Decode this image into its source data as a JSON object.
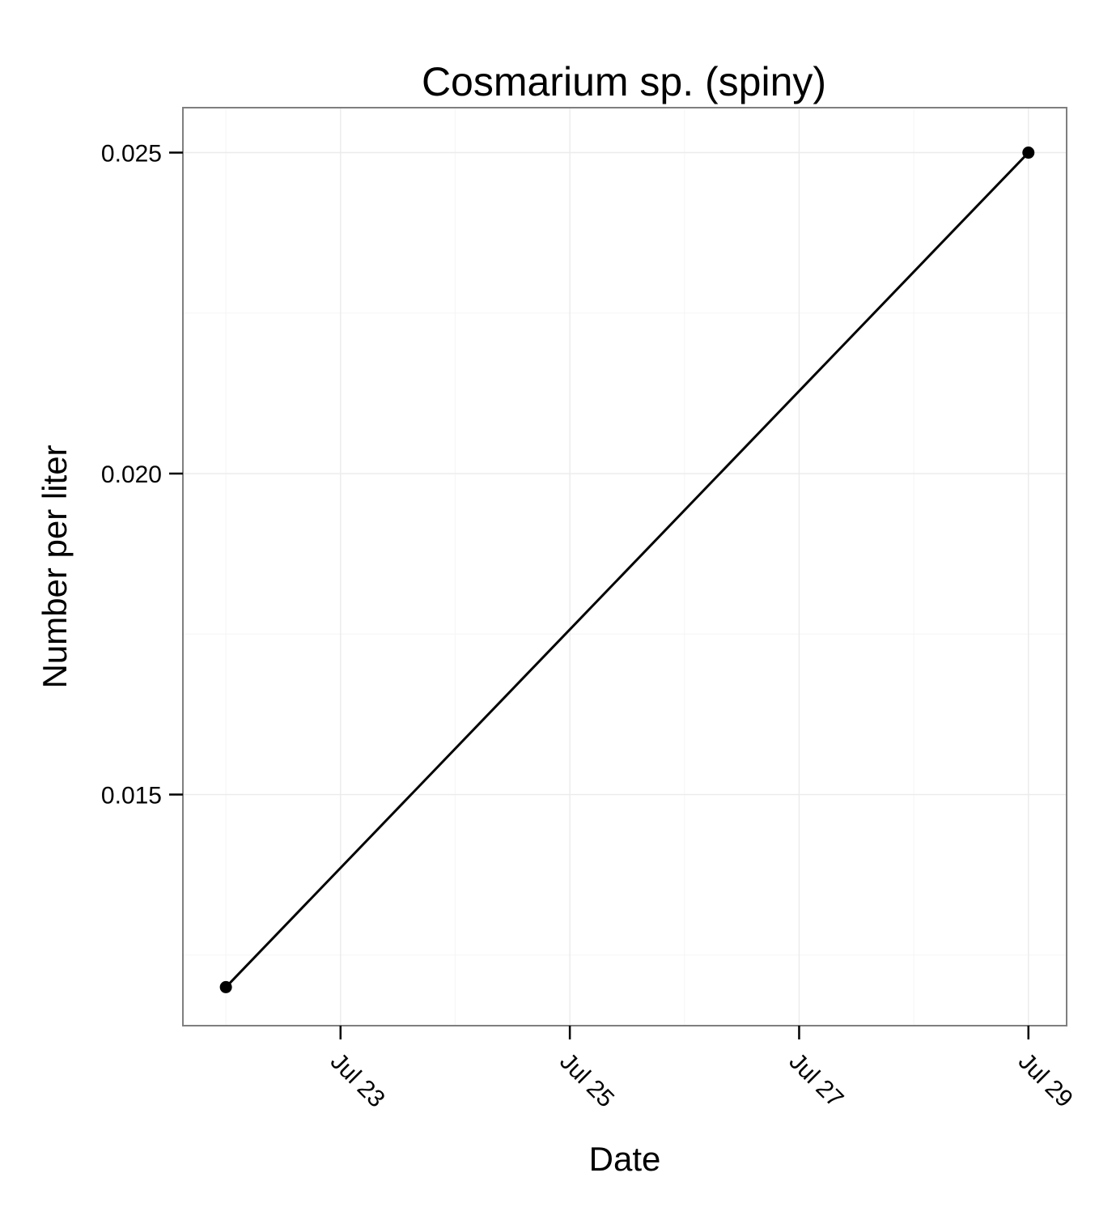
{
  "chart_data": {
    "type": "line",
    "title": "Cosmarium sp. (spiny)",
    "xlabel": "Date",
    "ylabel": "Number per liter",
    "x_type": "date",
    "xlim": [
      "2012-07-21T15:00",
      "2012-07-29T08:00"
    ],
    "ylim": [
      0.0114,
      0.0257
    ],
    "x_ticks": [
      {
        "value": "2012-07-23",
        "label": "Jul 23"
      },
      {
        "value": "2012-07-25",
        "label": "Jul 25"
      },
      {
        "value": "2012-07-27",
        "label": "Jul 27"
      },
      {
        "value": "2012-07-29",
        "label": "Jul 29"
      }
    ],
    "x_minor_ticks": [
      "2012-07-22",
      "2012-07-24",
      "2012-07-26",
      "2012-07-28"
    ],
    "y_ticks": [
      {
        "value": 0.015,
        "label": "0.015"
      },
      {
        "value": 0.02,
        "label": "0.020"
      },
      {
        "value": 0.025,
        "label": "0.025"
      }
    ],
    "y_minor_ticks": [
      0.0125,
      0.0175,
      0.0225
    ],
    "grid": true,
    "series": [
      {
        "x": [
          "2012-07-22",
          "2012-07-29"
        ],
        "y": [
          0.012,
          0.025
        ],
        "color": "#000000",
        "markers": true
      }
    ]
  }
}
